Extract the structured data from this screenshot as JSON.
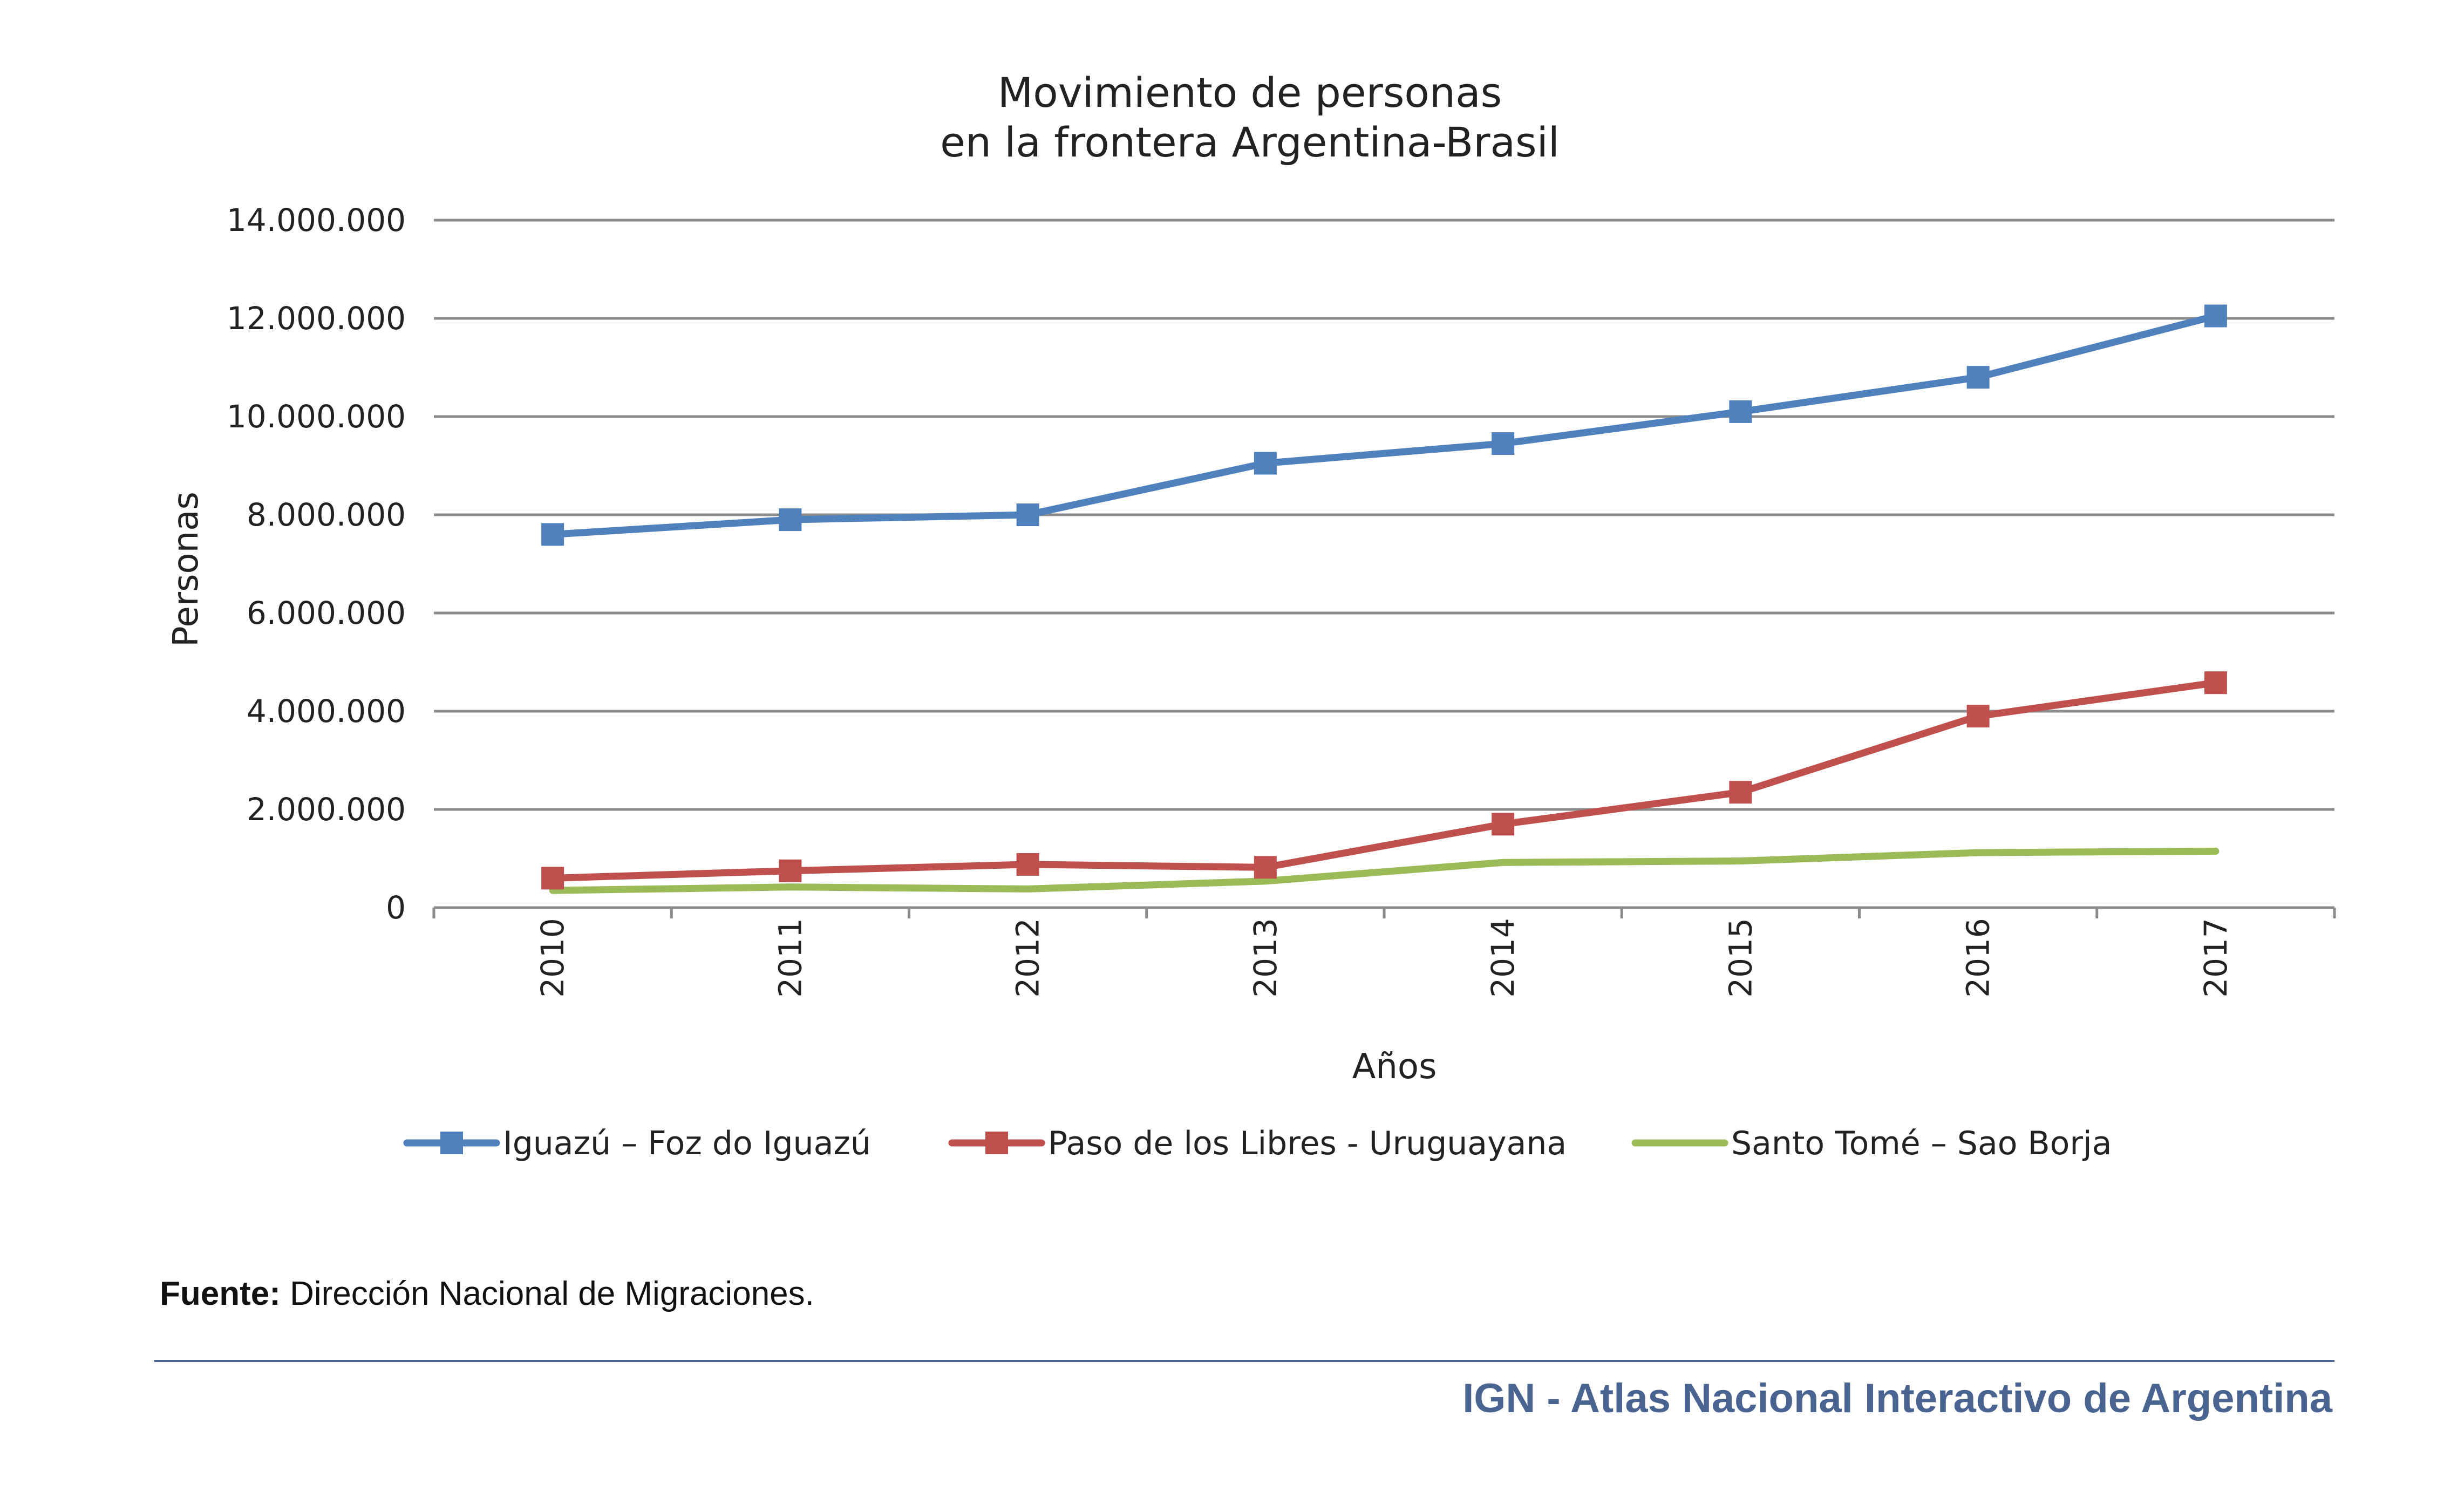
{
  "chart_data": {
    "type": "line",
    "title_lines": [
      "Movimiento de personas",
      "en la frontera Argentina-Brasil"
    ],
    "xlabel": "Años",
    "ylabel": "Personas",
    "categories": [
      "2010",
      "2011",
      "2012",
      "2013",
      "2014",
      "2015",
      "2016",
      "2017"
    ],
    "yticks": [
      0,
      2000000,
      4000000,
      6000000,
      8000000,
      10000000,
      12000000,
      14000000
    ],
    "ytick_labels": [
      "0",
      "2.000.000",
      "4.000.000",
      "6.000.000",
      "8.000.000",
      "10.000.000",
      "12.000.000",
      "14.000.000"
    ],
    "ylim": [
      0,
      14000000
    ],
    "grid": true,
    "legend_position": "bottom",
    "series": [
      {
        "name": "Iguazú – Foz do Iguazú",
        "color": "#4f81bd",
        "marker": "square",
        "values": [
          7600000,
          7900000,
          8000000,
          9050000,
          9450000,
          10100000,
          10800000,
          12050000
        ]
      },
      {
        "name": "Paso de los Libres - Uruguayana",
        "color": "#c0504d",
        "marker": "square",
        "values": [
          600000,
          750000,
          880000,
          820000,
          1700000,
          2350000,
          3900000,
          4580000
        ]
      },
      {
        "name": "Santo Tomé – Sao Borja",
        "color": "#9bbb59",
        "marker": "none",
        "values": [
          350000,
          420000,
          380000,
          540000,
          920000,
          950000,
          1120000,
          1150000
        ]
      }
    ]
  },
  "footer": {
    "source_label": "Fuente:",
    "source_text": " Dirección Nacional de Migraciones.",
    "brand": "IGN - Atlas Nacional Interactivo de Argentina"
  },
  "colors": {
    "grid": "#8c8c8c",
    "axis": "#8c8c8c",
    "brand": "#4a6491"
  }
}
